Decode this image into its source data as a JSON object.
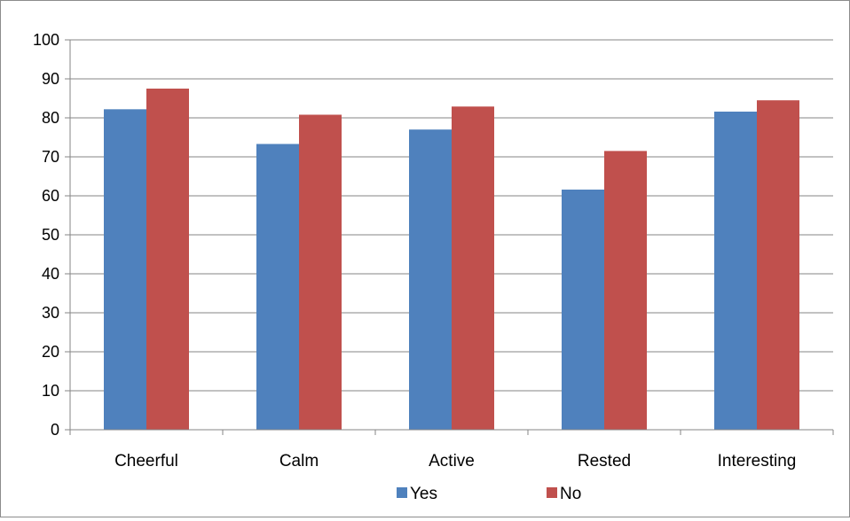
{
  "chart_data": {
    "type": "bar",
    "categories": [
      "Cheerful",
      "Calm",
      "Active",
      "Rested",
      "Interesting"
    ],
    "series": [
      {
        "name": "Yes",
        "values": [
          82.2,
          73.3,
          77.0,
          61.6,
          81.6
        ],
        "color": "#4F81BD"
      },
      {
        "name": "No",
        "values": [
          87.5,
          80.8,
          82.9,
          71.5,
          84.5
        ],
        "color": "#C0504D"
      }
    ],
    "title": "",
    "xlabel": "",
    "ylabel": "",
    "ylim": [
      0,
      100
    ],
    "yticks": [
      "0",
      "10",
      "20",
      "30",
      "40",
      "50",
      "60",
      "70",
      "80",
      "90",
      "100"
    ],
    "grid": true,
    "legend_position": "bottom"
  }
}
